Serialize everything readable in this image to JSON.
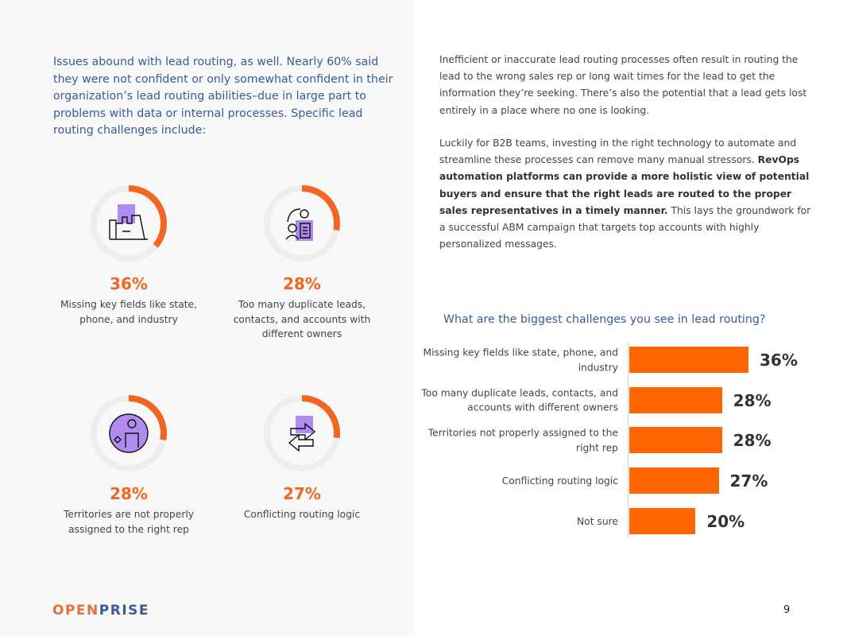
{
  "intro": "Issues abound with lead routing, as well. Nearly 60% said they were not confident or only somewhat confident in their organization’s lead routing abilities–due in large part to problems with data or internal processes. Specific lead routing challenges include:",
  "stats": [
    {
      "value": 36,
      "pct": "36%",
      "label": "Missing key fields like state, phone, and industry",
      "icon": "factory-icon"
    },
    {
      "value": 28,
      "pct": "28%",
      "label": "Too many duplicate leads, contacts, and accounts with different owners",
      "icon": "users-document-icon"
    },
    {
      "value": 28,
      "pct": "28%",
      "label": "Territories are not properly assigned to the right rep",
      "icon": "person-gear-icon"
    },
    {
      "value": 27,
      "pct": "27%",
      "label": "Conflicting routing logic",
      "icon": "arrows-exchange-icon"
    }
  ],
  "body": {
    "p1": "Inefficient or inaccurate lead routing processes often result in routing the lead to the wrong sales rep or long wait times for the lead to get the information they’re seeking. There’s also the potential that a lead gets lost entirely in a place where no one is looking.",
    "p2_start": "Luckily for B2B teams, investing in the right technology to automate and streamline these processes can remove many manual stressors.",
    "p2_bold": "RevOps automation platforms can provide a more holistic view of potential buyers and ensure that the right leads are routed to the proper sales representatives in a timely manner.",
    "p2_end": "This lays the groundwork for a successful ABM campaign that targets top accounts with highly personalized messages."
  },
  "chart_data": {
    "type": "bar",
    "orientation": "horizontal",
    "title": "What are the biggest challenges you see in lead routing?",
    "categories": [
      "Missing key fields like state, phone, and industry",
      "Too many duplicate leads, contacts, and accounts with different owners",
      "Territories not properly assigned to the right rep",
      "Conflicting routing logic",
      "Not sure"
    ],
    "values": [
      36,
      28,
      28,
      27,
      20
    ],
    "value_labels": [
      "36%",
      "28%",
      "28%",
      "27%",
      "20%"
    ],
    "bar_color": "#ff6600",
    "grid": false
  },
  "footer": {
    "logo_a": "OPEN",
    "logo_b": "PRISE",
    "page": "9"
  },
  "colors": {
    "accent": "#f26522",
    "heading": "#3b5b95",
    "icon_fill": "#b08cf0",
    "ring": "#eeeeee"
  }
}
